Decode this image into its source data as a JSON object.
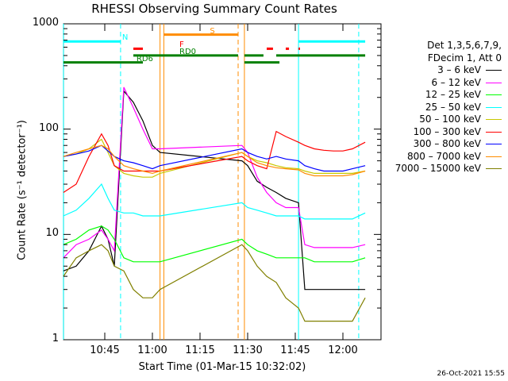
{
  "chart_data": {
    "type": "line",
    "title": "RHESSI Observing Summary Count Rates",
    "xlabel_prefix": "Start Time (01-Mar-15 10:32:02)",
    "ylabel": "Count Rate (s⁻¹ detector⁻¹)",
    "yscale": "log",
    "ylim": [
      1,
      1000
    ],
    "xlim": [
      "10:32",
      "12:12"
    ],
    "y_ticks": [
      "1",
      "10",
      "100",
      "1000"
    ],
    "x_ticks": [
      "10:45",
      "11:00",
      "11:15",
      "11:30",
      "11:45",
      "12:00"
    ],
    "legend_header": [
      "Det 1,3,5,6,7,9,",
      "FDecim 1, Att 0"
    ],
    "series": [
      {
        "name": "3 – 6 keV",
        "color": "#000000",
        "x": [
          10.533,
          10.6,
          10.667,
          10.733,
          10.767,
          10.8,
          10.85,
          10.9,
          10.95,
          11.0,
          11.04,
          11.47,
          11.5,
          11.55,
          11.6,
          11.65,
          11.7,
          11.767,
          11.8,
          11.85,
          11.9,
          11.95,
          12.0,
          12.05,
          12.117
        ],
        "y": [
          4.5,
          5,
          7,
          12,
          9,
          5,
          230,
          180,
          120,
          70,
          60,
          50,
          45,
          32,
          28,
          25,
          22,
          20,
          3,
          3,
          3,
          3,
          3,
          3,
          3
        ]
      },
      {
        "name": "6 – 12 keV",
        "color": "#ff00ff",
        "x": [
          10.533,
          10.6,
          10.667,
          10.733,
          10.767,
          10.8,
          10.85,
          10.9,
          10.95,
          11.0,
          11.04,
          11.47,
          11.5,
          11.55,
          11.6,
          11.65,
          11.7,
          11.767,
          11.8,
          11.85,
          11.9,
          11.95,
          12.0,
          12.05,
          12.117
        ],
        "y": [
          6,
          8,
          9,
          11,
          9,
          7,
          250,
          160,
          100,
          65,
          65,
          70,
          60,
          35,
          25,
          20,
          18,
          18,
          8,
          7.5,
          7.5,
          7.5,
          7.5,
          7.5,
          8
        ]
      },
      {
        "name": "12 – 25 keV",
        "color": "#00ff00",
        "x": [
          10.533,
          10.6,
          10.667,
          10.733,
          10.767,
          10.8,
          10.85,
          10.9,
          10.95,
          11.0,
          11.04,
          11.47,
          11.5,
          11.55,
          11.6,
          11.65,
          11.7,
          11.767,
          11.8,
          11.85,
          11.9,
          11.95,
          12.0,
          12.05,
          12.117
        ],
        "y": [
          8,
          9,
          11,
          12,
          11,
          9,
          6,
          5.5,
          5.5,
          5.5,
          5.5,
          9,
          8,
          7,
          6.5,
          6,
          6,
          6,
          6,
          5.5,
          5.5,
          5.5,
          5.5,
          5.5,
          6
        ]
      },
      {
        "name": "25 – 50 keV",
        "color": "#00ffff",
        "x": [
          10.533,
          10.6,
          10.667,
          10.733,
          10.767,
          10.8,
          10.85,
          10.9,
          10.95,
          11.0,
          11.04,
          11.47,
          11.5,
          11.55,
          11.6,
          11.65,
          11.7,
          11.767,
          11.8,
          11.85,
          11.9,
          11.95,
          12.0,
          12.05,
          12.117
        ],
        "y": [
          15,
          17,
          22,
          30,
          22,
          17,
          16,
          16,
          15,
          15,
          15,
          20,
          18,
          17,
          16,
          15,
          15,
          15,
          14,
          14,
          14,
          14,
          14,
          14,
          16
        ]
      },
      {
        "name": "50 – 100 keV",
        "color": "#c8c800",
        "x": [
          10.533,
          10.6,
          10.667,
          10.733,
          10.767,
          10.8,
          10.85,
          10.9,
          10.95,
          11.0,
          11.04,
          11.47,
          11.5,
          11.55,
          11.6,
          11.65,
          11.7,
          11.767,
          11.8,
          11.85,
          11.9,
          11.95,
          12.0,
          12.05,
          12.117
        ],
        "y": [
          55,
          58,
          65,
          80,
          60,
          45,
          38,
          36,
          35,
          35,
          38,
          60,
          55,
          50,
          48,
          45,
          43,
          42,
          40,
          38,
          38,
          38,
          38,
          38,
          40
        ]
      },
      {
        "name": "100 – 300 keV",
        "color": "#ff0000",
        "x": [
          10.533,
          10.6,
          10.667,
          10.733,
          10.767,
          10.8,
          10.85,
          10.9,
          10.95,
          11.0,
          11.04,
          11.47,
          11.5,
          11.55,
          11.6,
          11.65,
          11.7,
          11.767,
          11.8,
          11.85,
          11.9,
          11.95,
          12.0,
          12.05,
          12.117
        ],
        "y": [
          25,
          30,
          55,
          90,
          70,
          45,
          40,
          40,
          40,
          40,
          40,
          55,
          50,
          45,
          42,
          95,
          85,
          75,
          70,
          65,
          63,
          62,
          62,
          65,
          75
        ]
      },
      {
        "name": "300 – 800 keV",
        "color": "#0000ff",
        "x": [
          10.533,
          10.6,
          10.667,
          10.733,
          10.767,
          10.8,
          10.85,
          10.9,
          10.95,
          11.0,
          11.04,
          11.47,
          11.5,
          11.55,
          11.6,
          11.65,
          11.7,
          11.767,
          11.8,
          11.85,
          11.9,
          11.95,
          12.0,
          12.05,
          12.117
        ],
        "y": [
          55,
          58,
          62,
          70,
          62,
          55,
          50,
          48,
          45,
          42,
          45,
          65,
          60,
          55,
          52,
          55,
          52,
          50,
          45,
          42,
          40,
          40,
          40,
          42,
          45
        ]
      },
      {
        "name": "800 – 7000 keV",
        "color": "#ff8c00",
        "x": [
          10.533,
          10.6,
          10.667,
          10.733,
          10.767,
          10.8,
          10.85,
          10.9,
          10.95,
          11.0,
          11.04,
          11.47,
          11.5,
          11.55,
          11.6,
          11.65,
          11.7,
          11.767,
          11.8,
          11.85,
          11.9,
          11.95,
          12.0,
          12.05,
          12.117
        ],
        "y": [
          55,
          60,
          65,
          70,
          65,
          55,
          45,
          42,
          40,
          38,
          40,
          60,
          55,
          48,
          45,
          43,
          42,
          41,
          38,
          36,
          36,
          36,
          36,
          37,
          40
        ]
      },
      {
        "name": "7000 – 15000 keV",
        "color": "#808000",
        "x": [
          10.533,
          10.6,
          10.667,
          10.733,
          10.767,
          10.8,
          10.85,
          10.9,
          10.95,
          11.0,
          11.04,
          11.47,
          11.5,
          11.55,
          11.6,
          11.65,
          11.7,
          11.767,
          11.8,
          11.85,
          11.9,
          11.95,
          12.0,
          12.05,
          12.117
        ],
        "y": [
          4,
          6,
          7,
          8,
          7,
          5,
          4.5,
          3,
          2.5,
          2.5,
          3,
          8,
          7,
          5,
          4,
          3.5,
          2.5,
          2,
          1.5,
          1.5,
          1.5,
          1.5,
          1.5,
          1.5,
          2.5
        ]
      }
    ],
    "state_bars": [
      {
        "label": "N",
        "color": "#00ffff",
        "segments": [
          [
            10.533,
            10.833
          ],
          [
            11.767,
            12.117
          ]
        ],
        "y": 680
      },
      {
        "label": "F",
        "color": "#ff0000",
        "segments": [
          [
            10.9,
            10.95
          ],
          [
            11.6,
            11.633
          ],
          [
            11.7,
            11.717
          ],
          [
            11.767,
            11.775
          ]
        ],
        "y": 580
      },
      {
        "label": "S",
        "color": "#ff8c00",
        "segments": [
          [
            11.06,
            11.45
          ]
        ],
        "y": 790
      },
      {
        "label": "RD0",
        "color": "#008000",
        "segments": [
          [
            10.9,
            11.45
          ],
          [
            11.483,
            11.583
          ],
          [
            11.65,
            12.117
          ]
        ],
        "y": 500
      },
      {
        "label": "RD6",
        "color": "#008000",
        "segments": [
          [
            10.533,
            10.95
          ],
          [
            11.483,
            11.667
          ]
        ],
        "y": 430
      }
    ],
    "vlines": [
      {
        "x": 10.533,
        "color": "#00ffff",
        "style": "solid"
      },
      {
        "x": 10.833,
        "color": "#00ffff",
        "style": "dashed"
      },
      {
        "x": 11.767,
        "color": "#00ffff",
        "style": "solid"
      },
      {
        "x": 12.083,
        "color": "#00ffff",
        "style": "dashed"
      },
      {
        "x": 11.04,
        "color": "#ff8c00",
        "style": "solid"
      },
      {
        "x": 11.06,
        "color": "#ff8c00",
        "style": "solid"
      },
      {
        "x": 11.45,
        "color": "#ff8c00",
        "style": "dashed"
      },
      {
        "x": 11.483,
        "color": "#ff8c00",
        "style": "solid"
      }
    ],
    "timestamp": "26-Oct-2021 15:55"
  }
}
